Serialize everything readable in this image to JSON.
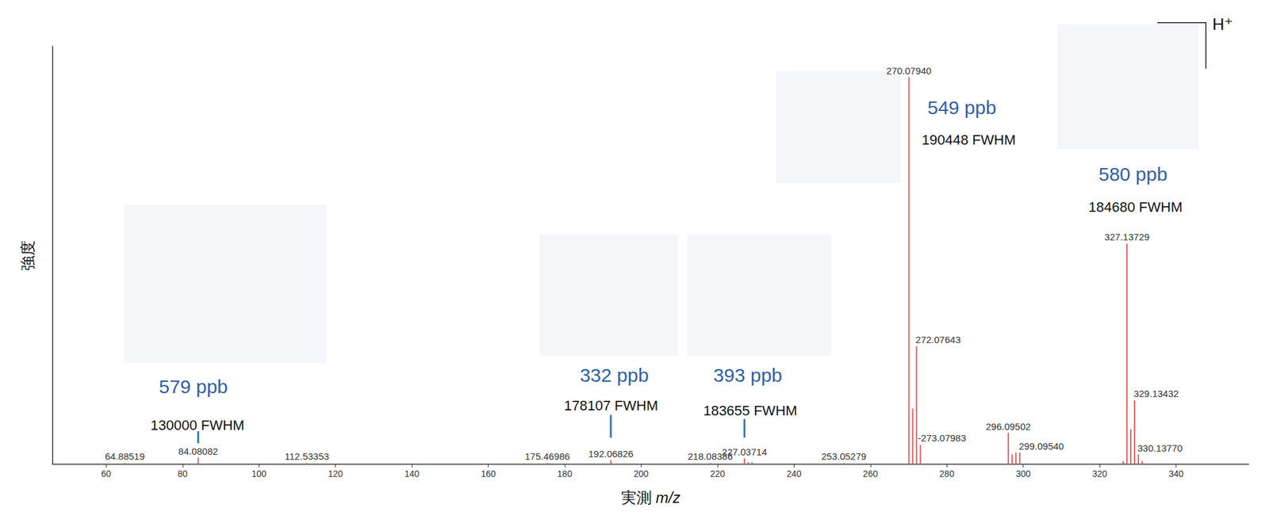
{
  "chart_data": {
    "type": "bar",
    "x_label": "実測 m/z",
    "y_label": "強度",
    "color": "#e05a5a",
    "xlim": [
      46,
      359
    ],
    "xticks": [
      60,
      80,
      100,
      120,
      140,
      160,
      180,
      200,
      220,
      240,
      260,
      280,
      300,
      320,
      340
    ],
    "ylim": [
      0,
      108
    ],
    "yticks": [],
    "tick_labels": "x",
    "grid": false,
    "x": [
      64.88519,
      84.08082,
      112.53353,
      175.46986,
      192.06826,
      218.08386,
      227.03714,
      228.04,
      229.03,
      253.05279,
      270.0794,
      271.0828,
      272.07643,
      273.07983,
      296.09502,
      297.1,
      298.09,
      299.0954,
      326.13,
      327.13729,
      328.14,
      329.13432,
      330.1377,
      331.13
    ],
    "values": [
      0.3,
      1.7,
      0.3,
      0.3,
      1.0,
      0.3,
      1.5,
      0.5,
      0.5,
      0.3,
      100,
      14.4,
      30.5,
      5,
      8.1,
      2.5,
      3.0,
      3,
      0.8,
      57,
      9,
      16.5,
      2.5,
      0.8
    ],
    "peak_labels": [
      "64.88519",
      "84.08082",
      "112.53353",
      "175.46986",
      "192.06826",
      "218.08386",
      "227.03714",
      null,
      null,
      "253.05279",
      "270.07940",
      null,
      "272.07643",
      "-273.07983",
      "296.09502",
      null,
      null,
      "299.09540",
      null,
      "327.13729",
      null,
      "329.13432",
      "330.13770",
      null
    ],
    "annotations": [
      {
        "x": 84.08082,
        "ppb": "579 ppb",
        "fwhm": "130000 FWHM",
        "color": "#2f5fa7"
      },
      {
        "x": 192.06826,
        "ppb": "332 ppb",
        "fwhm": "178107 FWHM",
        "color": "#2f5fa7"
      },
      {
        "x": 227.03714,
        "ppb": "393 ppb",
        "fwhm": "183655 FWHM",
        "color": "#2f5fa7"
      },
      {
        "x": 270.0794,
        "ppb": "549 ppb",
        "fwhm": "190448 FWHM",
        "color": "#2f5fa7"
      },
      {
        "x": 327.13729,
        "ppb": "580 ppb",
        "fwhm": "184680 FWHM",
        "color": "#2f5fa7"
      }
    ],
    "ion_label": "H⁺"
  }
}
